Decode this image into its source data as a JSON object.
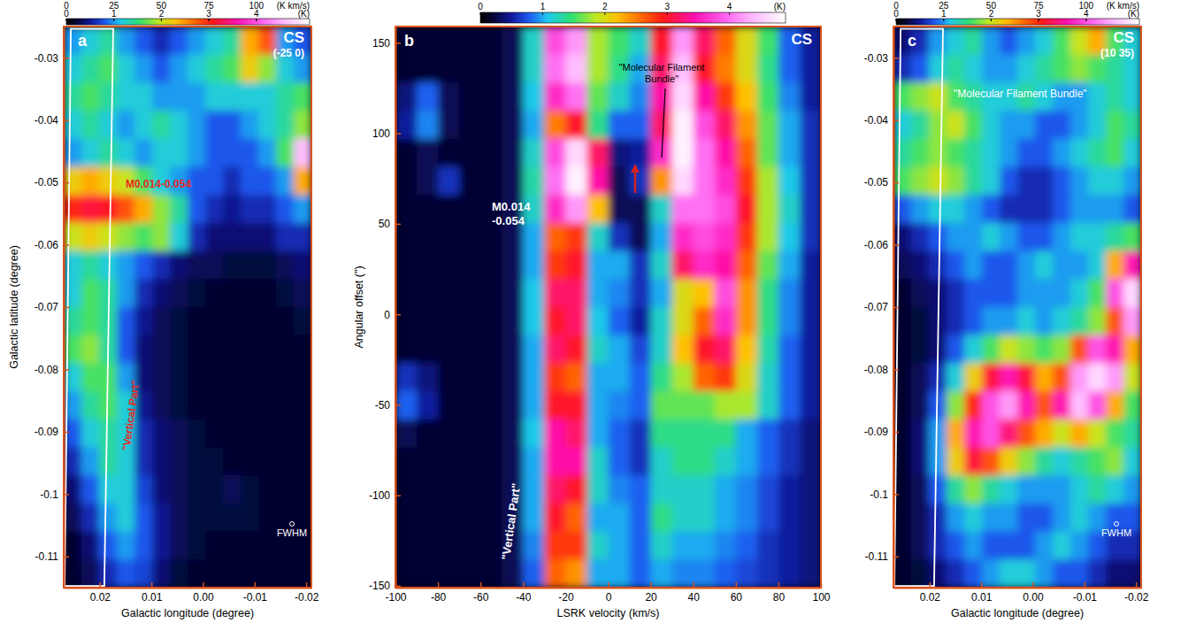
{
  "chart_data": [
    {
      "type": "heatmap",
      "panel_label": "a",
      "title": "CS",
      "subtitle": "(-25 0)",
      "xlabel": "Galactic longitude (degree)",
      "ylabel": "Galactic latitude (degree)",
      "xlim": [
        0.027,
        -0.021
      ],
      "xticks": [
        0.02,
        0.01,
        {
          "value": 0,
          "label": "0.00"
        },
        -0.01,
        -0.02
      ],
      "ylim": [
        -0.115,
        -0.025
      ],
      "yticks": [
        -0.03,
        -0.04,
        -0.05,
        -0.06,
        -0.07,
        -0.08,
        -0.09,
        -0.1,
        -0.11
      ],
      "colorbar": {
        "range": [
          0,
          128
        ],
        "ticks": [
          0,
          25,
          50,
          75,
          100
        ],
        "unit": "(K km/s)",
        "range2": [
          0,
          5.12
        ],
        "ticks2": [
          0,
          1,
          2,
          3,
          4
        ],
        "unit2": "(K)"
      },
      "beam_label": "FWHM",
      "annotations": [
        {
          "text": "M0.014-0.054",
          "color": "#e8281e"
        },
        {
          "text": "\"Vertical Part\"",
          "color": "#e8281e"
        }
      ],
      "z": [
        [
          25,
          30,
          35,
          25,
          20,
          15,
          20,
          25,
          30,
          35,
          60,
          70,
          25,
          20
        ],
        [
          30,
          35,
          40,
          30,
          25,
          20,
          25,
          30,
          35,
          40,
          55,
          45,
          30,
          25
        ],
        [
          35,
          40,
          35,
          30,
          30,
          25,
          25,
          25,
          30,
          30,
          30,
          30,
          35,
          40
        ],
        [
          30,
          35,
          30,
          25,
          30,
          35,
          30,
          25,
          20,
          20,
          25,
          30,
          35,
          45
        ],
        [
          25,
          30,
          35,
          30,
          25,
          30,
          30,
          25,
          20,
          20,
          20,
          25,
          40,
          115
        ],
        [
          55,
          60,
          55,
          50,
          40,
          30,
          25,
          20,
          20,
          15,
          20,
          20,
          25,
          60
        ],
        [
          75,
          80,
          78,
          70,
          60,
          45,
          35,
          20,
          15,
          12,
          15,
          15,
          20,
          25
        ],
        [
          50,
          55,
          50,
          45,
          40,
          45,
          30,
          15,
          10,
          10,
          10,
          10,
          15,
          15
        ],
        [
          30,
          35,
          30,
          25,
          20,
          15,
          10,
          8,
          8,
          6,
          6,
          6,
          8,
          10
        ],
        [
          30,
          40,
          35,
          25,
          15,
          10,
          8,
          6,
          5,
          5,
          5,
          5,
          6,
          8
        ],
        [
          35,
          40,
          35,
          20,
          12,
          8,
          6,
          5,
          5,
          5,
          5,
          5,
          5,
          6
        ],
        [
          40,
          45,
          35,
          20,
          10,
          8,
          6,
          5,
          5,
          5,
          5,
          5,
          5,
          5
        ],
        [
          30,
          40,
          40,
          25,
          10,
          8,
          6,
          5,
          5,
          5,
          5,
          5,
          5,
          5
        ],
        [
          25,
          35,
          40,
          30,
          12,
          8,
          6,
          5,
          5,
          5,
          5,
          5,
          5,
          5
        ],
        [
          20,
          30,
          35,
          30,
          15,
          10,
          8,
          6,
          5,
          5,
          5,
          5,
          5,
          5
        ],
        [
          15,
          25,
          35,
          30,
          15,
          10,
          8,
          6,
          6,
          5,
          5,
          5,
          5,
          5
        ],
        [
          10,
          20,
          30,
          30,
          18,
          10,
          8,
          6,
          6,
          8,
          6,
          5,
          5,
          5
        ],
        [
          8,
          15,
          25,
          30,
          20,
          12,
          8,
          6,
          6,
          6,
          6,
          5,
          5,
          5
        ],
        [
          5,
          10,
          20,
          25,
          20,
          12,
          8,
          6,
          5,
          5,
          5,
          5,
          5,
          5
        ],
        [
          5,
          8,
          15,
          20,
          18,
          10,
          6,
          5,
          5,
          5,
          5,
          5,
          5,
          5
        ]
      ]
    },
    {
      "type": "heatmap",
      "panel_label": "b",
      "title": "CS",
      "xlabel": "LSRK velocity (km/s)",
      "ylabel": "Angular offset (\")",
      "xlim": [
        -100,
        100
      ],
      "xticks": [
        -100,
        -80,
        -60,
        -40,
        -20,
        0,
        20,
        40,
        60,
        80,
        100
      ],
      "ylim": [
        -151,
        159
      ],
      "yticks": [
        150,
        100,
        50,
        0,
        -50,
        -100,
        -150
      ],
      "colorbar": {
        "range": [
          0,
          4.9
        ],
        "ticks": [
          0,
          1,
          2,
          3,
          4
        ],
        "unit": "(K)"
      },
      "annotations": [
        {
          "text": "M0.014\n-0.054",
          "color": "#ffffff"
        },
        {
          "text": "\"Vertical Part\"",
          "color": "#ffffff"
        },
        {
          "text": "\"Molecular Filament\nBundle\"",
          "color": "#000000"
        }
      ],
      "z": [
        [
          0.2,
          0.2,
          0.2,
          0.2,
          0.2,
          0.3,
          1.2,
          3.8,
          4.2,
          1.8,
          1.5,
          1.2,
          3.0,
          4.2,
          3.2,
          2.6,
          2.0,
          1.5,
          0.8,
          0.5
        ],
        [
          0.2,
          0.2,
          0.2,
          0.2,
          0.2,
          0.3,
          1.2,
          4.0,
          4.4,
          1.8,
          1.4,
          1.0,
          3.2,
          4.4,
          3.0,
          2.5,
          2.0,
          1.4,
          0.8,
          0.5
        ],
        [
          0.4,
          0.8,
          0.3,
          0.2,
          0.2,
          0.3,
          1.1,
          3.6,
          4.0,
          1.6,
          1.2,
          0.9,
          3.4,
          4.6,
          3.4,
          2.8,
          2.2,
          1.5,
          0.9,
          0.5
        ],
        [
          0.5,
          0.9,
          0.3,
          0.2,
          0.2,
          0.3,
          1.0,
          2.5,
          3.0,
          1.4,
          0.8,
          0.8,
          3.2,
          4.8,
          3.8,
          3.2,
          2.4,
          1.6,
          1.0,
          0.6
        ],
        [
          0.2,
          0.3,
          0.2,
          0.2,
          0.2,
          0.3,
          1.2,
          3.8,
          4.6,
          3.2,
          0.4,
          0.5,
          3.6,
          4.8,
          4.0,
          3.4,
          2.6,
          1.6,
          1.0,
          0.6
        ],
        [
          0.2,
          0.3,
          0.6,
          0.2,
          0.2,
          0.3,
          1.3,
          4.0,
          4.8,
          3.4,
          0.3,
          0.6,
          2.4,
          4.6,
          4.0,
          3.6,
          2.8,
          1.8,
          1.1,
          0.6
        ],
        [
          0.2,
          0.2,
          0.2,
          0.2,
          0.2,
          0.3,
          1.2,
          3.6,
          4.2,
          2.2,
          0.3,
          0.3,
          1.2,
          4.0,
          4.0,
          3.8,
          3.0,
          1.8,
          1.2,
          0.6
        ],
        [
          0.2,
          0.2,
          0.2,
          0.2,
          0.2,
          0.3,
          1.0,
          2.6,
          2.8,
          1.2,
          0.6,
          0.3,
          1.0,
          3.6,
          3.8,
          3.6,
          2.8,
          1.8,
          1.1,
          0.6
        ],
        [
          0.2,
          0.2,
          0.2,
          0.2,
          0.2,
          0.3,
          1.0,
          2.8,
          3.0,
          1.0,
          1.0,
          0.6,
          1.2,
          3.2,
          3.6,
          3.4,
          2.6,
          1.6,
          1.0,
          0.5
        ],
        [
          0.2,
          0.2,
          0.2,
          0.2,
          0.2,
          0.3,
          1.1,
          3.2,
          3.2,
          1.0,
          0.9,
          0.6,
          1.0,
          2.0,
          2.2,
          3.8,
          2.4,
          1.4,
          0.9,
          0.5
        ],
        [
          0.2,
          0.2,
          0.2,
          0.2,
          0.2,
          0.3,
          1.1,
          3.0,
          3.2,
          1.1,
          0.8,
          0.5,
          1.2,
          2.0,
          2.6,
          3.6,
          2.4,
          1.4,
          0.9,
          0.5
        ],
        [
          0.2,
          0.2,
          0.2,
          0.2,
          0.2,
          0.3,
          1.0,
          3.2,
          3.0,
          1.2,
          1.0,
          0.7,
          1.2,
          2.2,
          3.0,
          3.2,
          2.2,
          1.3,
          0.8,
          0.5
        ],
        [
          0.6,
          0.4,
          0.2,
          0.2,
          0.2,
          0.3,
          1.0,
          2.8,
          2.6,
          1.0,
          1.0,
          0.8,
          1.4,
          1.8,
          2.6,
          2.8,
          2.0,
          1.2,
          0.8,
          0.5
        ],
        [
          0.8,
          0.5,
          0.2,
          0.2,
          0.2,
          0.3,
          1.0,
          3.0,
          3.0,
          1.0,
          0.9,
          0.8,
          1.6,
          1.6,
          1.6,
          1.8,
          1.8,
          1.2,
          0.8,
          0.5
        ],
        [
          0.3,
          0.2,
          0.2,
          0.2,
          0.2,
          0.3,
          1.1,
          3.4,
          3.2,
          1.0,
          0.8,
          0.6,
          1.4,
          1.4,
          1.4,
          1.4,
          1.0,
          0.8,
          0.6,
          0.4
        ],
        [
          0.2,
          0.2,
          0.2,
          0.2,
          0.2,
          0.3,
          1.0,
          3.4,
          3.4,
          1.2,
          0.8,
          0.6,
          1.2,
          1.4,
          1.4,
          1.2,
          1.0,
          0.8,
          0.6,
          0.4
        ],
        [
          0.2,
          0.2,
          0.2,
          0.2,
          0.2,
          0.3,
          1.0,
          3.2,
          3.0,
          1.2,
          0.9,
          0.8,
          1.2,
          1.2,
          1.2,
          1.0,
          0.9,
          0.7,
          0.5,
          0.4
        ],
        [
          0.2,
          0.2,
          0.2,
          0.2,
          0.2,
          0.3,
          1.0,
          3.0,
          2.6,
          1.0,
          1.0,
          0.8,
          1.4,
          1.2,
          1.2,
          1.0,
          0.9,
          0.7,
          0.5,
          0.4
        ],
        [
          0.2,
          0.2,
          0.2,
          0.2,
          0.2,
          0.3,
          0.9,
          2.8,
          2.8,
          1.2,
          1.0,
          0.8,
          1.2,
          1.0,
          1.0,
          0.9,
          0.8,
          0.6,
          0.5,
          0.4
        ],
        [
          0.2,
          0.2,
          0.2,
          0.2,
          0.2,
          0.3,
          0.8,
          2.6,
          2.4,
          1.0,
          1.0,
          0.8,
          1.0,
          0.9,
          0.9,
          0.8,
          0.7,
          0.6,
          0.5,
          0.4
        ]
      ]
    },
    {
      "type": "heatmap",
      "panel_label": "c",
      "title": "CS",
      "subtitle": "(10 35)",
      "xlabel": "Galactic longitude (degree)",
      "xlim": [
        0.027,
        -0.021
      ],
      "xticks": [
        0.02,
        0.01,
        {
          "value": 0,
          "label": "0.00"
        },
        -0.01,
        -0.02
      ],
      "ylim": [
        -0.115,
        -0.025
      ],
      "yticks": [
        -0.03,
        -0.04,
        -0.05,
        -0.06,
        -0.07,
        -0.08,
        -0.09,
        -0.1,
        -0.11
      ],
      "colorbar": {
        "range": [
          0,
          128
        ],
        "ticks": [
          0,
          25,
          50,
          75,
          100
        ],
        "unit": "(K km/s)",
        "range2": [
          0,
          5.12
        ],
        "ticks2": [
          0,
          1,
          2,
          3,
          4
        ],
        "unit2": "(K)"
      },
      "beam_label": "FWHM",
      "annotations": [
        {
          "text": "\"Molecular Filament Bundle\"",
          "color": "#ffffff"
        }
      ],
      "z": [
        [
          10,
          15,
          25,
          30,
          35,
          25,
          20,
          25,
          30,
          40,
          50,
          60,
          40,
          30
        ],
        [
          15,
          20,
          30,
          35,
          30,
          25,
          25,
          30,
          35,
          40,
          45,
          40,
          35,
          30
        ],
        [
          40,
          45,
          50,
          40,
          35,
          30,
          30,
          35,
          30,
          25,
          25,
          30,
          35,
          30
        ],
        [
          30,
          35,
          45,
          50,
          40,
          30,
          25,
          25,
          20,
          20,
          25,
          30,
          40,
          35
        ],
        [
          35,
          40,
          45,
          40,
          35,
          30,
          25,
          20,
          20,
          25,
          30,
          35,
          40,
          30
        ],
        [
          40,
          45,
          50,
          45,
          35,
          30,
          20,
          15,
          15,
          20,
          25,
          30,
          30,
          25
        ],
        [
          20,
          25,
          30,
          30,
          25,
          20,
          15,
          15,
          15,
          20,
          25,
          25,
          25,
          20
        ],
        [
          10,
          15,
          20,
          25,
          25,
          30,
          25,
          20,
          20,
          25,
          30,
          30,
          35,
          40
        ],
        [
          8,
          10,
          15,
          20,
          25,
          20,
          20,
          25,
          30,
          25,
          25,
          30,
          60,
          90
        ],
        [
          5,
          8,
          10,
          15,
          20,
          20,
          20,
          25,
          25,
          25,
          30,
          40,
          100,
          120
        ],
        [
          5,
          6,
          10,
          15,
          20,
          25,
          25,
          30,
          25,
          30,
          35,
          45,
          70,
          110
        ],
        [
          5,
          6,
          10,
          20,
          30,
          40,
          50,
          45,
          40,
          45,
          70,
          100,
          90,
          60
        ],
        [
          5,
          8,
          15,
          30,
          55,
          80,
          90,
          80,
          60,
          70,
          110,
          120,
          110,
          50
        ],
        [
          5,
          8,
          20,
          45,
          75,
          100,
          110,
          90,
          70,
          90,
          115,
          100,
          60,
          40
        ],
        [
          5,
          10,
          25,
          60,
          90,
          100,
          85,
          70,
          60,
          50,
          60,
          50,
          40,
          35
        ],
        [
          5,
          10,
          25,
          55,
          80,
          70,
          55,
          45,
          35,
          30,
          35,
          40,
          45,
          30
        ],
        [
          5,
          8,
          20,
          35,
          45,
          35,
          30,
          25,
          25,
          25,
          30,
          35,
          30,
          25
        ],
        [
          5,
          8,
          15,
          25,
          30,
          25,
          25,
          20,
          20,
          25,
          30,
          25,
          20,
          20
        ],
        [
          5,
          8,
          15,
          20,
          25,
          20,
          20,
          20,
          25,
          30,
          25,
          20,
          15,
          15
        ],
        [
          5,
          6,
          10,
          15,
          20,
          25,
          30,
          30,
          25,
          20,
          20,
          15,
          10,
          10
        ]
      ]
    }
  ]
}
